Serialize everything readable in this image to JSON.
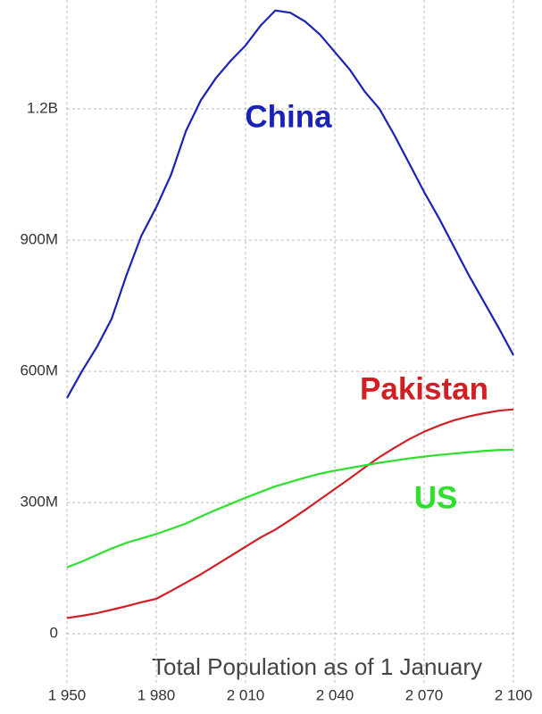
{
  "chart_data": {
    "type": "line",
    "title": "Total Population as of 1 January",
    "x": [
      1950,
      1955,
      1960,
      1965,
      1970,
      1975,
      1980,
      1985,
      1990,
      1995,
      2000,
      2005,
      2010,
      2015,
      2020,
      2025,
      2030,
      2035,
      2040,
      2045,
      2050,
      2055,
      2060,
      2065,
      2070,
      2075,
      2080,
      2085,
      2090,
      2095,
      2100
    ],
    "series": [
      {
        "name": "China",
        "color": "#1a22b8",
        "values": [
          539000000,
          600000000,
          655000000,
          720000000,
          820000000,
          910000000,
          975000000,
          1050000000,
          1150000000,
          1220000000,
          1270000000,
          1310000000,
          1345000000,
          1390000000,
          1425000000,
          1420000000,
          1400000000,
          1370000000,
          1330000000,
          1290000000,
          1240000000,
          1200000000,
          1140000000,
          1075000000,
          1010000000,
          950000000,
          885000000,
          820000000,
          760000000,
          700000000,
          637000000
        ]
      },
      {
        "name": "Pakistan",
        "color": "#d11f24",
        "values": [
          36000000,
          41000000,
          47000000,
          55000000,
          63000000,
          72000000,
          80000000,
          98000000,
          117000000,
          136000000,
          157000000,
          178000000,
          199000000,
          220000000,
          238000000,
          260000000,
          283000000,
          307000000,
          331000000,
          355000000,
          380000000,
          404000000,
          425000000,
          445000000,
          462000000,
          476000000,
          488000000,
          497000000,
          504000000,
          510000000,
          513000000
        ]
      },
      {
        "name": "US",
        "color": "#2ee02e",
        "values": [
          152000000,
          165000000,
          180000000,
          195000000,
          208000000,
          218000000,
          228000000,
          240000000,
          252000000,
          268000000,
          283000000,
          297000000,
          311000000,
          324000000,
          337000000,
          347000000,
          357000000,
          366000000,
          373000000,
          379000000,
          385000000,
          391000000,
          396000000,
          401000000,
          405000000,
          409000000,
          412000000,
          415000000,
          418000000,
          420000000,
          421000000
        ]
      }
    ],
    "xlim": [
      1950,
      2100
    ],
    "xticks": [
      {
        "value": 1950,
        "label": "1 950"
      },
      {
        "value": 1980,
        "label": "1 980"
      },
      {
        "value": 2010,
        "label": "2 010"
      },
      {
        "value": 2040,
        "label": "2 040"
      },
      {
        "value": 2070,
        "label": "2 070"
      },
      {
        "value": 2100,
        "label": "2 100"
      }
    ],
    "ylim": [
      -112000000,
      1449000000
    ],
    "yticks": [
      0,
      {
        "value": 300000000,
        "label": "300M"
      },
      {
        "value": 600000000,
        "label": "600M"
      },
      {
        "value": 900000000,
        "label": "900M"
      },
      {
        "value": 1200000000,
        "label": "1.2B"
      }
    ],
    "grid": true
  }
}
